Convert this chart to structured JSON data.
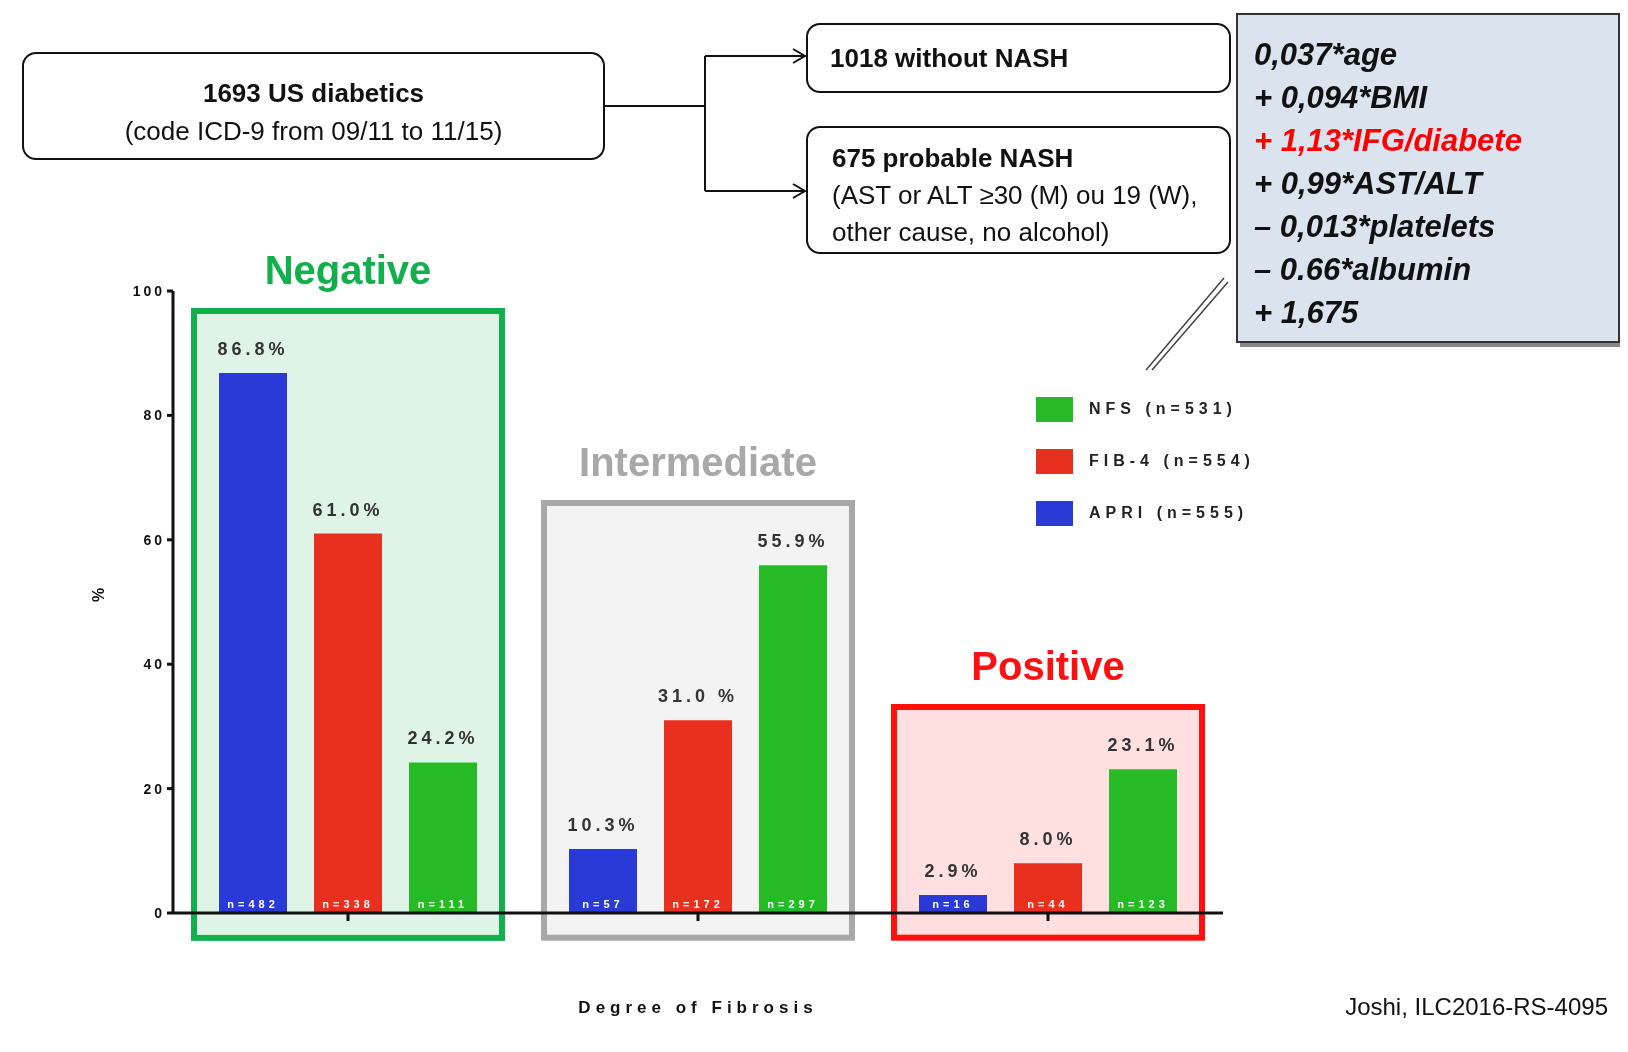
{
  "chart_data": [
    {
      "type": "other",
      "annotations": [
        "1693 US diabetics",
        "(code ICD-9 from 09/11 to 11/15)",
        "1018 without NASH",
        "675 probable NASH",
        "(AST or ALT ≥30 (M) ou 19 (W),",
        "other cause, no alcohol)"
      ]
    },
    {
      "type": "other",
      "annotations": [
        "0,037*age",
        "+ 0,094*BMI",
        "+ 1,13*IFG/diabete",
        "+ 0,99*AST/ALT",
        "– 0,013*platelets",
        "– 0.66*albumin",
        "+ 1,675"
      ],
      "colors": [
        "#111111",
        "#111111",
        "#ff0000",
        "#111111",
        "#111111",
        "#111111",
        "#111111"
      ]
    },
    {
      "type": "bar",
      "categories": [
        "Negative",
        "Intermediate",
        "Positive"
      ],
      "grid": false,
      "bands": [
        {
          "axis": "x",
          "from": "Negative",
          "to": "Negative",
          "color": "#11b04c"
        },
        {
          "axis": "x",
          "from": "Intermediate",
          "to": "Intermediate",
          "color": "#a8a8a8"
        },
        {
          "axis": "x",
          "from": "Positive",
          "to": "Positive",
          "color": "#ff1010"
        }
      ],
      "ylabel": "%",
      "xlabel": "Degree of Fibrosis",
      "ylim": [
        0,
        100
      ],
      "yticks": [
        0,
        20,
        40,
        60,
        80,
        100
      ],
      "legend": "top right",
      "series": [
        {
          "name": "APRI (n=555)",
          "color": "#2a3ad6",
          "values": [
            86.8,
            10.3,
            2.9
          ],
          "value_labels": [
            "86.8%",
            "10.3%",
            "2.9%"
          ]
        },
        {
          "name": "FIB-4 (n=554)",
          "color": "#e8301e",
          "values": [
            61.0,
            31.0,
            8.0
          ],
          "value_labels": [
            "61.0%",
            "31.0 %",
            "8.0%"
          ]
        },
        {
          "name": "NFS (n=531)",
          "color": "#26bb26",
          "values": [
            24.2,
            55.9,
            23.1
          ],
          "value_labels": [
            "24.2%",
            "55.9%",
            "23.1%"
          ]
        }
      ],
      "annotations": [
        "n=482",
        "n=57",
        "n=16",
        "n=338",
        "n=172",
        "n=44",
        "n=111",
        "n=297",
        "n=123",
        "Joshi, ILC2016-RS-4095"
      ]
    }
  ]
}
